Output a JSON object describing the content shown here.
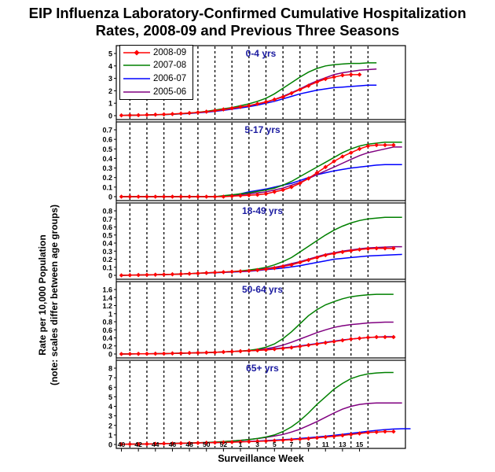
{
  "title_line1": "EIP Influenza Laboratory-Confirmed Cumulative Hospitalization",
  "title_line2": "Rates, 2008-09 and Previous Three Seasons",
  "ylabel_line1": "Rate per 10,000 Population",
  "ylabel_line2": "(note: scales differ between age groups)",
  "xlabel": "Surveillance Week",
  "legend": [
    {
      "name": "2008-09",
      "color": "#ff0000"
    },
    {
      "name": "2007-08",
      "color": "#008000"
    },
    {
      "name": "2006-07",
      "color": "#0000ff"
    },
    {
      "name": "2005-06",
      "color": "#800080"
    }
  ],
  "chart_data": {
    "type": "line",
    "x_tick_labels": [
      "40",
      "42",
      "44",
      "46",
      "48",
      "50",
      "52",
      "1",
      "3",
      "5",
      "7",
      "9",
      "11",
      "13",
      "15"
    ],
    "panels": [
      {
        "label": "0-4 yrs",
        "ylim": [
          0,
          5
        ],
        "yticks": [
          "0",
          "1",
          "2",
          "3",
          "4",
          "5"
        ],
        "series": [
          {
            "name": "2008-09",
            "values": [
              0.02,
              0.03,
              0.04,
              0.06,
              0.08,
              0.1,
              0.13,
              0.17,
              0.21,
              0.26,
              0.32,
              0.4,
              0.5,
              0.6,
              0.7,
              0.8,
              0.95,
              1.1,
              1.3,
              1.5,
              1.8,
              2.1,
              2.4,
              2.7,
              2.95,
              3.1,
              3.25,
              3.3,
              3.3
            ]
          },
          {
            "name": "2007-08",
            "values": [
              0.02,
              0.03,
              0.04,
              0.05,
              0.07,
              0.09,
              0.12,
              0.16,
              0.21,
              0.27,
              0.35,
              0.45,
              0.55,
              0.65,
              0.8,
              0.95,
              1.15,
              1.4,
              1.75,
              2.2,
              2.65,
              3.1,
              3.5,
              3.8,
              4.0,
              4.1,
              4.15,
              4.2,
              4.2,
              4.25,
              4.25
            ]
          },
          {
            "name": "2006-07",
            "values": [
              0.02,
              0.03,
              0.04,
              0.05,
              0.07,
              0.09,
              0.11,
              0.14,
              0.18,
              0.23,
              0.28,
              0.35,
              0.43,
              0.52,
              0.62,
              0.72,
              0.85,
              1.0,
              1.15,
              1.35,
              1.55,
              1.75,
              1.9,
              2.05,
              2.15,
              2.25,
              2.3,
              2.35,
              2.4,
              2.45,
              2.45
            ]
          },
          {
            "name": "2005-06",
            "values": [
              0.02,
              0.03,
              0.04,
              0.05,
              0.07,
              0.09,
              0.12,
              0.15,
              0.2,
              0.25,
              0.31,
              0.38,
              0.46,
              0.56,
              0.67,
              0.8,
              0.95,
              1.1,
              1.3,
              1.55,
              1.85,
              2.15,
              2.5,
              2.8,
              3.05,
              3.3,
              3.45,
              3.55,
              3.65,
              3.7,
              3.75
            ]
          }
        ]
      },
      {
        "label": "5-17 yrs",
        "ylim": [
          0,
          0.7
        ],
        "yticks": [
          "0",
          "0.1",
          "0.2",
          "0.3",
          "0.4",
          "0.5",
          "0.6",
          "0.7"
        ],
        "series": [
          {
            "name": "2008-09",
            "values": [
              0,
              0,
              0,
              0,
              0,
              0,
              0,
              0,
              0,
              0,
              0,
              0,
              0,
              0.005,
              0.01,
              0.015,
              0.02,
              0.03,
              0.05,
              0.07,
              0.1,
              0.14,
              0.19,
              0.25,
              0.31,
              0.37,
              0.42,
              0.46,
              0.5,
              0.53,
              0.54,
              0.54,
              0.54
            ]
          },
          {
            "name": "2007-08",
            "values": [
              0,
              0,
              0,
              0,
              0,
              0,
              0,
              0,
              0,
              0,
              0,
              0,
              0.01,
              0.02,
              0.03,
              0.04,
              0.055,
              0.07,
              0.09,
              0.12,
              0.16,
              0.21,
              0.26,
              0.31,
              0.36,
              0.41,
              0.46,
              0.5,
              0.53,
              0.55,
              0.56,
              0.57,
              0.57,
              0.57
            ]
          },
          {
            "name": "2006-07",
            "values": [
              0,
              0,
              0,
              0,
              0,
              0,
              0,
              0,
              0,
              0,
              0,
              0,
              0.005,
              0.015,
              0.03,
              0.05,
              0.065,
              0.08,
              0.1,
              0.12,
              0.14,
              0.17,
              0.2,
              0.23,
              0.25,
              0.27,
              0.285,
              0.3,
              0.31,
              0.32,
              0.33,
              0.335,
              0.335,
              0.335
            ]
          },
          {
            "name": "2005-06",
            "values": [
              0,
              0,
              0,
              0,
              0,
              0,
              0,
              0,
              0,
              0,
              0,
              0,
              0.005,
              0.01,
              0.02,
              0.03,
              0.04,
              0.05,
              0.07,
              0.09,
              0.12,
              0.15,
              0.19,
              0.23,
              0.27,
              0.31,
              0.35,
              0.39,
              0.43,
              0.46,
              0.48,
              0.5,
              0.52,
              0.52
            ]
          }
        ]
      },
      {
        "label": "18-49 yrs",
        "ylim": [
          0,
          0.8
        ],
        "yticks": [
          "0",
          "0.1",
          "0.2",
          "0.3",
          "0.4",
          "0.5",
          "0.6",
          "0.7",
          "0.8"
        ],
        "series": [
          {
            "name": "2008-09",
            "values": [
              0,
              0.002,
              0.004,
              0.006,
              0.008,
              0.01,
              0.013,
              0.016,
              0.02,
              0.025,
              0.03,
              0.035,
              0.04,
              0.045,
              0.05,
              0.055,
              0.065,
              0.075,
              0.09,
              0.11,
              0.13,
              0.16,
              0.19,
              0.22,
              0.25,
              0.27,
              0.29,
              0.305,
              0.32,
              0.33,
              0.335,
              0.335,
              0.335
            ]
          },
          {
            "name": "2007-08",
            "values": [
              0,
              0.002,
              0.004,
              0.006,
              0.008,
              0.01,
              0.013,
              0.016,
              0.02,
              0.025,
              0.03,
              0.035,
              0.04,
              0.045,
              0.055,
              0.065,
              0.08,
              0.1,
              0.13,
              0.17,
              0.22,
              0.29,
              0.36,
              0.43,
              0.5,
              0.56,
              0.61,
              0.65,
              0.68,
              0.7,
              0.71,
              0.72,
              0.72,
              0.72
            ]
          },
          {
            "name": "2006-07",
            "values": [
              0,
              0.002,
              0.004,
              0.006,
              0.008,
              0.01,
              0.013,
              0.016,
              0.02,
              0.024,
              0.028,
              0.032,
              0.036,
              0.04,
              0.045,
              0.05,
              0.06,
              0.07,
              0.08,
              0.09,
              0.105,
              0.12,
              0.14,
              0.16,
              0.18,
              0.2,
              0.21,
              0.22,
              0.23,
              0.24,
              0.245,
              0.25,
              0.255,
              0.26
            ]
          },
          {
            "name": "2005-06",
            "values": [
              0,
              0.002,
              0.004,
              0.006,
              0.008,
              0.01,
              0.013,
              0.016,
              0.02,
              0.025,
              0.03,
              0.035,
              0.04,
              0.045,
              0.05,
              0.06,
              0.07,
              0.085,
              0.1,
              0.12,
              0.145,
              0.17,
              0.2,
              0.23,
              0.26,
              0.28,
              0.3,
              0.315,
              0.33,
              0.34,
              0.345,
              0.35,
              0.355,
              0.355
            ]
          }
        ]
      },
      {
        "label": "50-64 yrs",
        "ylim": [
          0,
          1.6
        ],
        "yticks": [
          "0",
          "0.2",
          "0.4",
          "0.6",
          "0.8",
          "1",
          "1.2",
          "1.4",
          "1.6"
        ],
        "series": [
          {
            "name": "2008-09",
            "values": [
              0,
              0.002,
              0.004,
              0.006,
              0.008,
              0.01,
              0.015,
              0.02,
              0.025,
              0.03,
              0.035,
              0.04,
              0.05,
              0.06,
              0.07,
              0.08,
              0.09,
              0.1,
              0.12,
              0.14,
              0.16,
              0.19,
              0.22,
              0.25,
              0.28,
              0.31,
              0.34,
              0.37,
              0.39,
              0.41,
              0.42,
              0.42,
              0.42
            ]
          },
          {
            "name": "2007-08",
            "values": [
              0,
              0.002,
              0.004,
              0.006,
              0.008,
              0.01,
              0.015,
              0.02,
              0.025,
              0.03,
              0.035,
              0.04,
              0.05,
              0.06,
              0.07,
              0.09,
              0.12,
              0.17,
              0.25,
              0.38,
              0.55,
              0.75,
              0.95,
              1.1,
              1.22,
              1.3,
              1.37,
              1.42,
              1.45,
              1.47,
              1.48,
              1.48,
              1.48
            ]
          },
          {
            "name": "2006-07",
            "values": [
              0,
              0.002,
              0.004,
              0.006,
              0.008,
              0.01,
              0.015,
              0.02,
              0.025,
              0.03,
              0.035,
              0.04,
              0.05,
              0.06,
              0.07,
              0.08,
              0.09,
              0.11,
              0.13,
              0.15,
              0.17,
              0.2,
              0.23,
              0.26,
              0.29,
              0.32,
              0.35,
              0.37,
              0.39,
              0.41,
              0.42,
              0.43,
              0.43
            ]
          },
          {
            "name": "2005-06",
            "values": [
              0,
              0.002,
              0.004,
              0.006,
              0.008,
              0.01,
              0.015,
              0.02,
              0.025,
              0.03,
              0.035,
              0.04,
              0.05,
              0.06,
              0.07,
              0.085,
              0.105,
              0.13,
              0.17,
              0.22,
              0.29,
              0.37,
              0.45,
              0.53,
              0.6,
              0.66,
              0.7,
              0.73,
              0.75,
              0.77,
              0.78,
              0.79,
              0.79
            ]
          }
        ]
      },
      {
        "label": "65+ yrs",
        "ylim": [
          0,
          8
        ],
        "yticks": [
          "0",
          "1",
          "2",
          "3",
          "4",
          "5",
          "6",
          "7",
          "8"
        ],
        "series": [
          {
            "name": "2008-09",
            "values": [
              0.02,
              0.03,
              0.04,
              0.05,
              0.07,
              0.09,
              0.1,
              0.12,
              0.14,
              0.16,
              0.18,
              0.2,
              0.22,
              0.24,
              0.27,
              0.3,
              0.33,
              0.36,
              0.4,
              0.45,
              0.5,
              0.56,
              0.62,
              0.7,
              0.78,
              0.86,
              0.95,
              1.05,
              1.15,
              1.25,
              1.3,
              1.35,
              1.35
            ]
          },
          {
            "name": "2007-08",
            "values": [
              0.02,
              0.03,
              0.04,
              0.05,
              0.07,
              0.09,
              0.11,
              0.13,
              0.15,
              0.18,
              0.21,
              0.25,
              0.3,
              0.36,
              0.43,
              0.52,
              0.63,
              0.78,
              1.0,
              1.35,
              1.85,
              2.5,
              3.3,
              4.2,
              5.0,
              5.8,
              6.4,
              6.9,
              7.2,
              7.4,
              7.5,
              7.55,
              7.55
            ]
          },
          {
            "name": "2006-07",
            "values": [
              0.02,
              0.03,
              0.04,
              0.05,
              0.07,
              0.09,
              0.1,
              0.12,
              0.14,
              0.16,
              0.18,
              0.2,
              0.23,
              0.26,
              0.29,
              0.32,
              0.36,
              0.4,
              0.45,
              0.5,
              0.56,
              0.63,
              0.7,
              0.78,
              0.87,
              0.96,
              1.06,
              1.16,
              1.27,
              1.38,
              1.48,
              1.56,
              1.62,
              1.65,
              1.65
            ]
          },
          {
            "name": "2005-06",
            "values": [
              0.02,
              0.03,
              0.04,
              0.05,
              0.07,
              0.09,
              0.11,
              0.13,
              0.15,
              0.18,
              0.21,
              0.25,
              0.3,
              0.36,
              0.43,
              0.52,
              0.62,
              0.74,
              0.88,
              1.05,
              1.3,
              1.6,
              2.0,
              2.4,
              2.85,
              3.3,
              3.7,
              4.0,
              4.2,
              4.3,
              4.35,
              4.35,
              4.35,
              4.35
            ]
          }
        ]
      }
    ]
  }
}
